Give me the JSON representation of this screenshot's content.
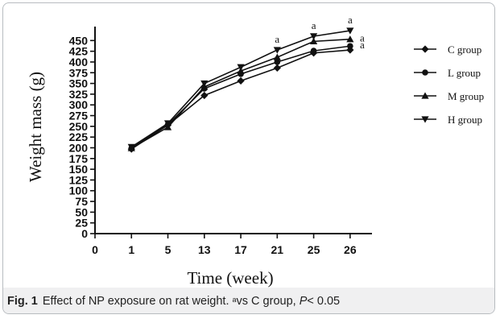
{
  "figure": {
    "caption_label": "Fig. 1",
    "caption_text": "Effect of NP exposure on rat weight.",
    "caption_sup": "a",
    "caption_vs": "vs C group,",
    "caption_p": "P",
    "caption_threshold": "< 0.05"
  },
  "chart_data": {
    "type": "line",
    "xlabel": "Time (week)",
    "ylabel": "Weight mass (g)",
    "categories": [
      "0",
      "1",
      "5",
      "13",
      "17",
      "21",
      "25",
      "26"
    ],
    "x": [
      "1",
      "5",
      "13",
      "17",
      "21",
      "25",
      "26"
    ],
    "ylim": [
      0,
      475
    ],
    "yticks": [
      0,
      25,
      50,
      75,
      100,
      125,
      150,
      175,
      200,
      225,
      250,
      275,
      300,
      325,
      350,
      375,
      400,
      425,
      450
    ],
    "ytick_labels": [
      "0",
      "25",
      "50",
      "75",
      "100",
      "125",
      "150",
      "175",
      "200",
      "225",
      "250",
      "275",
      "300",
      "325",
      "350",
      "375",
      "400",
      "425",
      "450"
    ],
    "series": [
      {
        "name": "C group",
        "marker": "diamond",
        "values": [
          197,
          253,
          322,
          356,
          386,
          421,
          428
        ]
      },
      {
        "name": "L group",
        "marker": "circle",
        "values": [
          199,
          254,
          338,
          372,
          400,
          426,
          437
        ]
      },
      {
        "name": "M group",
        "marker": "triangle-up",
        "values": [
          199,
          248,
          342,
          379,
          411,
          448,
          453
        ]
      },
      {
        "name": "H group",
        "marker": "triangle-down",
        "values": [
          202,
          257,
          350,
          388,
          428,
          460,
          473
        ]
      }
    ],
    "annotations": [
      {
        "text": "a",
        "x": "21",
        "y": 428
      },
      {
        "text": "a",
        "x": "25",
        "y": 460
      },
      {
        "text": "a",
        "x": "26",
        "y": 473
      },
      {
        "text": "a",
        "x": "26",
        "y": 453
      },
      {
        "text": "a",
        "x": "26",
        "y": 437
      }
    ],
    "legend_position": "right",
    "grid": false,
    "line_color": "#111111"
  }
}
